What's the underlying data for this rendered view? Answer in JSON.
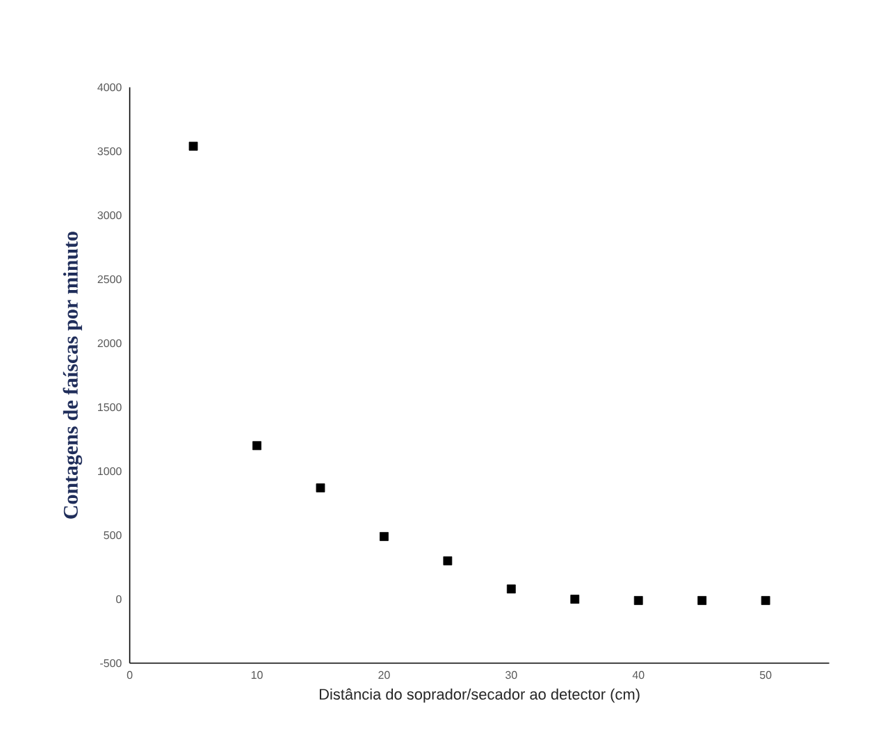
{
  "chart_data": {
    "type": "scatter",
    "xlabel": "Distância do soprador/secador ao detector (cm)",
    "ylabel": "Contagens de faíscas por minuto",
    "x": [
      5,
      10,
      15,
      20,
      25,
      30,
      35,
      40,
      45,
      50
    ],
    "series": [
      {
        "color": "#000000",
        "values": [
          3540,
          1200,
          870,
          490,
          300,
          80,
          0,
          -10,
          -10,
          -10
        ]
      }
    ],
    "xlim": [
      0,
      55
    ],
    "ylim": [
      -500,
      4000
    ],
    "xticks": [
      0,
      10,
      20,
      30,
      40,
      50
    ],
    "yticks": [
      -500,
      0,
      500,
      1000,
      1500,
      2000,
      2500,
      3000,
      3500,
      4000
    ],
    "marker": "square"
  }
}
